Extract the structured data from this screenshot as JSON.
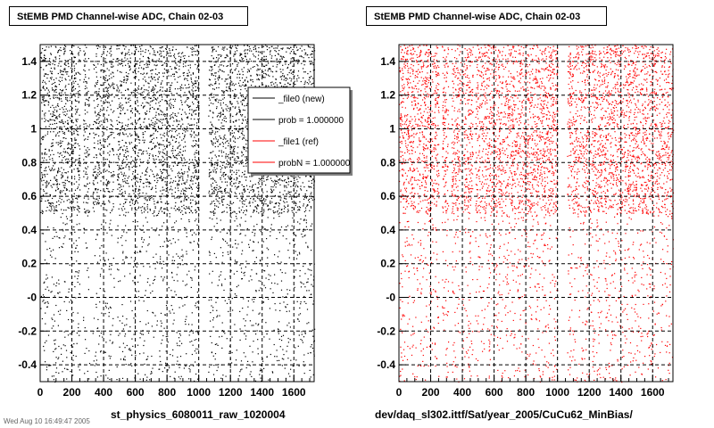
{
  "panels": [
    {
      "title": "StEMB PMD Channel-wise ADC, Chain 02-03",
      "xlabel": "st_physics_6080011_raw_1020004",
      "color": "#000000"
    },
    {
      "title": "StEMB PMD Channel-wise ADC, Chain 02-03",
      "xlabel": "dev/daq_sl302.ittf/Sat/year_2005/CuCu62_MinBias/",
      "color": "#ff0000"
    }
  ],
  "stamp": "Wed Aug 10 16:49:47 2005",
  "legend": {
    "entries": [
      {
        "label": "_file0 (new)",
        "color": "#000000"
      },
      {
        "label": "prob = 1.000000",
        "color": "#000000"
      },
      {
        "label": "_file1 (ref)",
        "color": "#ff0000"
      },
      {
        "label": "probN = 1.000000",
        "color": "#ff0000"
      }
    ]
  },
  "chart_data": [
    {
      "type": "scatter",
      "title": "StEMB PMD Channel-wise ADC, Chain 02-03",
      "xlabel": "st_physics_6080011_raw_1020004",
      "ylabel": "",
      "xlim": [
        0,
        1728
      ],
      "ylim": [
        -0.5,
        1.5
      ],
      "xticks": [
        0,
        200,
        400,
        600,
        800,
        1000,
        1200,
        1400,
        1600
      ],
      "yticks": [
        -0.4,
        -0.2,
        0.0,
        0.2,
        0.4,
        0.6,
        0.8,
        1.0,
        1.2,
        1.4
      ],
      "ytick_labels": [
        "-0.4",
        "-0.2",
        "-0",
        "0.2",
        "0.4",
        "0.6",
        "0.8",
        "1",
        "1.2",
        "1.4"
      ],
      "grid": true,
      "series": [
        {
          "color": "#000000",
          "dense_y_range": [
            0.5,
            1.5
          ],
          "sparse_y_range": [
            -0.5,
            0.5
          ],
          "empty_x_bands": [
            [
              250,
              270
            ],
            [
              310,
              330
            ],
            [
              390,
              400
            ],
            [
              465,
              480
            ],
            [
              1000,
              1060
            ]
          ]
        }
      ]
    },
    {
      "type": "scatter",
      "title": "StEMB PMD Channel-wise ADC, Chain 02-03",
      "xlabel": "dev/daq_sl302.ittf/Sat/year_2005/CuCu62_MinBias/",
      "ylabel": "",
      "xlim": [
        0,
        1728
      ],
      "ylim": [
        -0.5,
        1.5
      ],
      "xticks": [
        0,
        200,
        400,
        600,
        800,
        1000,
        1200,
        1400,
        1600
      ],
      "yticks": [
        -0.4,
        -0.2,
        0.0,
        0.2,
        0.4,
        0.6,
        0.8,
        1.0,
        1.2,
        1.4
      ],
      "ytick_labels": [
        "-0.4",
        "-0.2",
        "-0",
        "0.2",
        "0.4",
        "0.6",
        "0.8",
        "1",
        "1.2",
        "1.4"
      ],
      "grid": true,
      "series": [
        {
          "color": "#ff0000",
          "dense_y_range": [
            0.5,
            1.5
          ],
          "sparse_y_range": [
            -0.5,
            0.5
          ],
          "empty_x_bands": [
            [
              250,
              270
            ],
            [
              310,
              330
            ],
            [
              390,
              400
            ],
            [
              465,
              480
            ],
            [
              1000,
              1060
            ]
          ]
        }
      ]
    }
  ]
}
